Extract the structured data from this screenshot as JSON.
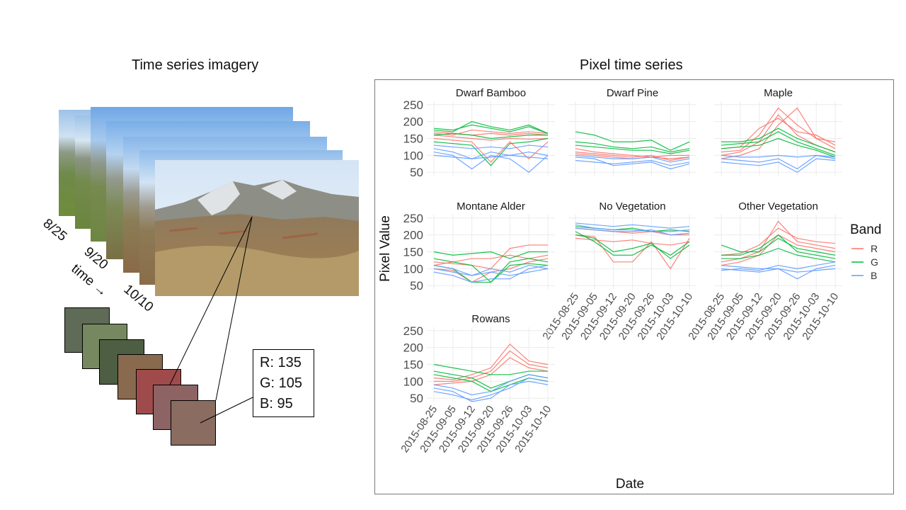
{
  "left_title": "Time series imagery",
  "right_title": "Pixel time series",
  "stack_dates": [
    "8/25",
    "9/20",
    "10/10"
  ],
  "time_label": "time →",
  "swatch_colors": [
    "#5f6a57",
    "#76885f",
    "#4d5e43",
    "#8a6a4e",
    "#a04b4b",
    "#8d6363",
    "#8a6c60"
  ],
  "rgb": {
    "r": "R: 135",
    "g": "G: 105",
    "b": "B: 95"
  },
  "chart_data": {
    "type": "line",
    "facets": [
      "Dwarf Bamboo",
      "Dwarf Pine",
      "Maple",
      "Montane Alder",
      "No Vegetation",
      "Other Vegetation",
      "Rowans"
    ],
    "x": [
      "2015-08-25",
      "2015-09-05",
      "2015-09-12",
      "2015-09-20",
      "2015-09-26",
      "2015-10-03",
      "2015-10-10"
    ],
    "yticks": [
      50,
      100,
      150,
      200,
      250
    ],
    "ylim": [
      40,
      260
    ],
    "xlabel": "Date",
    "ylabel": "Pixel Value",
    "legend": {
      "title": "Band",
      "position": "right",
      "items": [
        {
          "name": "R",
          "color": "#f8766d"
        },
        {
          "name": "G",
          "color": "#00ba38"
        },
        {
          "name": "B",
          "color": "#619cff"
        }
      ]
    },
    "grid": true,
    "panels": [
      {
        "name": "Dwarf Bamboo",
        "series": [
          {
            "band": "R",
            "values": [
              160,
              155,
              150,
              145,
              150,
              148,
              150
            ]
          },
          {
            "band": "R",
            "values": [
              170,
              165,
              160,
              165,
              160,
              165,
              160
            ]
          },
          {
            "band": "R",
            "values": [
              150,
              145,
              140,
              80,
              140,
              90,
              140
            ]
          },
          {
            "band": "R",
            "values": [
              165,
              160,
              175,
              170,
              165,
              170,
              165
            ]
          },
          {
            "band": "G",
            "values": [
              180,
              175,
              190,
              180,
              170,
              185,
              165
            ]
          },
          {
            "band": "G",
            "values": [
              175,
              170,
              200,
              185,
              175,
              190,
              165
            ]
          },
          {
            "band": "G",
            "values": [
              160,
              165,
              160,
              150,
              155,
              160,
              160
            ]
          },
          {
            "band": "G",
            "values": [
              140,
              135,
              130,
              70,
              135,
              140,
              150
            ]
          },
          {
            "band": "B",
            "values": [
              120,
              110,
              90,
              110,
              100,
              110,
              100
            ]
          },
          {
            "band": "B",
            "values": [
              110,
              100,
              60,
              100,
              90,
              50,
              100
            ]
          },
          {
            "band": "B",
            "values": [
              130,
              125,
              120,
              125,
              120,
              130,
              125
            ]
          },
          {
            "band": "B",
            "values": [
              100,
              95,
              90,
              95,
              100,
              95,
              90
            ]
          }
        ]
      },
      {
        "name": "Dwarf Pine",
        "series": [
          {
            "band": "R",
            "values": [
              120,
              110,
              105,
              100,
              95,
              100,
              100
            ]
          },
          {
            "band": "R",
            "values": [
              105,
              100,
              95,
              90,
              95,
              90,
              95
            ]
          },
          {
            "band": "R",
            "values": [
              110,
              105,
              100,
              95,
              100,
              85,
              95
            ]
          },
          {
            "band": "G",
            "values": [
              170,
              160,
              140,
              140,
              145,
              115,
              140
            ]
          },
          {
            "band": "G",
            "values": [
              140,
              135,
              125,
              120,
              125,
              110,
              120
            ]
          },
          {
            "band": "G",
            "values": [
              130,
              125,
              120,
              115,
              115,
              105,
              115
            ]
          },
          {
            "band": "B",
            "values": [
              100,
              95,
              90,
              90,
              95,
              80,
              90
            ]
          },
          {
            "band": "B",
            "values": [
              85,
              80,
              75,
              80,
              85,
              70,
              80
            ]
          },
          {
            "band": "B",
            "values": [
              95,
              90,
              70,
              75,
              80,
              60,
              75
            ]
          }
        ]
      },
      {
        "name": "Maple",
        "series": [
          {
            "band": "R",
            "values": [
              110,
              115,
              160,
              240,
              190,
              150,
              140
            ]
          },
          {
            "band": "R",
            "values": [
              100,
              110,
              140,
              220,
              160,
              130,
              110
            ]
          },
          {
            "band": "R",
            "values": [
              90,
              100,
              120,
              190,
              240,
              150,
              120
            ]
          },
          {
            "band": "R",
            "values": [
              120,
              125,
              180,
              210,
              170,
              160,
              130
            ]
          },
          {
            "band": "G",
            "values": [
              140,
              140,
              150,
              180,
              150,
              130,
              110
            ]
          },
          {
            "band": "G",
            "values": [
              130,
              135,
              140,
              170,
              140,
              120,
              100
            ]
          },
          {
            "band": "G",
            "values": [
              120,
              125,
              130,
              150,
              130,
              115,
              95
            ]
          },
          {
            "band": "B",
            "values": [
              90,
              85,
              80,
              90,
              60,
              100,
              90
            ]
          },
          {
            "band": "B",
            "values": [
              80,
              75,
              70,
              80,
              50,
              90,
              85
            ]
          },
          {
            "band": "B",
            "values": [
              100,
              95,
              95,
              100,
              95,
              100,
              95
            ]
          }
        ]
      },
      {
        "name": "Montane Alder",
        "series": [
          {
            "band": "R",
            "values": [
              120,
              115,
              110,
              100,
              160,
              170,
              170
            ]
          },
          {
            "band": "R",
            "values": [
              110,
              120,
              130,
              130,
              140,
              130,
              140
            ]
          },
          {
            "band": "R",
            "values": [
              100,
              95,
              60,
              90,
              100,
              120,
              130
            ]
          },
          {
            "band": "G",
            "values": [
              150,
              140,
              145,
              150,
              130,
              150,
              150
            ]
          },
          {
            "band": "G",
            "values": [
              130,
              120,
              110,
              60,
              120,
              130,
              120
            ]
          },
          {
            "band": "G",
            "values": [
              110,
              100,
              60,
              60,
              110,
              115,
              110
            ]
          },
          {
            "band": "B",
            "values": [
              100,
              90,
              80,
              90,
              80,
              90,
              100
            ]
          },
          {
            "band": "B",
            "values": [
              90,
              80,
              60,
              70,
              70,
              100,
              110
            ]
          },
          {
            "band": "B",
            "values": [
              110,
              100,
              80,
              100,
              90,
              110,
              100
            ]
          }
        ]
      },
      {
        "name": "No Vegetation",
        "series": [
          {
            "band": "R",
            "values": [
              200,
              195,
              120,
              120,
              180,
              100,
              190
            ]
          },
          {
            "band": "R",
            "values": [
              220,
              215,
              210,
              205,
              210,
              200,
              200
            ]
          },
          {
            "band": "R",
            "values": [
              190,
              185,
              180,
              185,
              175,
              170,
              180
            ]
          },
          {
            "band": "G",
            "values": [
              210,
              180,
              140,
              140,
              170,
              140,
              180
            ]
          },
          {
            "band": "G",
            "values": [
              225,
              220,
              215,
              220,
              210,
              215,
              210
            ]
          },
          {
            "band": "G",
            "values": [
              200,
              190,
              150,
              160,
              175,
              130,
              170
            ]
          },
          {
            "band": "B",
            "values": [
              235,
              230,
              225,
              230,
              225,
              220,
              225
            ]
          },
          {
            "band": "B",
            "values": [
              220,
              215,
              210,
              210,
              215,
              200,
              205
            ]
          },
          {
            "band": "B",
            "values": [
              230,
              220,
              215,
              215,
              210,
              210,
              215
            ]
          }
        ]
      },
      {
        "name": "Other Vegetation",
        "series": [
          {
            "band": "R",
            "values": [
              120,
              130,
              150,
              240,
              180,
              170,
              160
            ]
          },
          {
            "band": "R",
            "values": [
              140,
              145,
              170,
              220,
              190,
              180,
              175
            ]
          },
          {
            "band": "R",
            "values": [
              110,
              120,
              140,
              200,
              170,
              160,
              150
            ]
          },
          {
            "band": "G",
            "values": [
              170,
              150,
              150,
              190,
              160,
              150,
              140
            ]
          },
          {
            "band": "G",
            "values": [
              140,
              140,
              160,
              200,
              150,
              140,
              130
            ]
          },
          {
            "band": "G",
            "values": [
              130,
              130,
              140,
              160,
              140,
              130,
              120
            ]
          },
          {
            "band": "B",
            "values": [
              110,
              105,
              100,
              100,
              70,
              100,
              110
            ]
          },
          {
            "band": "B",
            "values": [
              100,
              95,
              90,
              100,
              90,
              95,
              100
            ]
          },
          {
            "band": "B",
            "values": [
              95,
              100,
              95,
              110,
              100,
              110,
              120
            ]
          }
        ]
      },
      {
        "name": "Rowans",
        "series": [
          {
            "band": "R",
            "values": [
              110,
              105,
              120,
              140,
              210,
              160,
              150
            ]
          },
          {
            "band": "R",
            "values": [
              100,
              100,
              110,
              130,
              190,
              150,
              140
            ]
          },
          {
            "band": "R",
            "values": [
              90,
              95,
              100,
              120,
              170,
              140,
              130
            ]
          },
          {
            "band": "G",
            "values": [
              150,
              140,
              130,
              120,
              120,
              130,
              130
            ]
          },
          {
            "band": "G",
            "values": [
              130,
              120,
              110,
              80,
              100,
              120,
              110
            ]
          },
          {
            "band": "G",
            "values": [
              120,
              110,
              100,
              70,
              90,
              110,
              100
            ]
          },
          {
            "band": "B",
            "values": [
              80,
              70,
              40,
              50,
              90,
              100,
              90
            ]
          },
          {
            "band": "B",
            "values": [
              70,
              60,
              45,
              60,
              80,
              110,
              100
            ]
          },
          {
            "band": "B",
            "values": [
              90,
              80,
              60,
              70,
              100,
              120,
              110
            ]
          }
        ]
      }
    ]
  }
}
